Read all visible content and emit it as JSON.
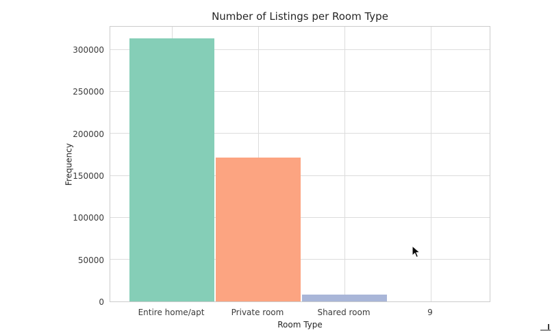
{
  "figure": {
    "background": "#ffffff",
    "text_color": "#262626",
    "grid_color": "#dcdcdc",
    "spine_color": "#cccccc"
  },
  "chart_data": {
    "type": "bar",
    "title": "Number of Listings per Room Type",
    "xlabel": "Room Type",
    "ylabel": "Frequency",
    "categories": [
      "Entire home/apt",
      "Private room",
      "Shared room",
      "9"
    ],
    "values": [
      313000,
      171000,
      8000,
      0
    ],
    "bar_colors": [
      "#85ceb7",
      "#fca481",
      "#a9b6d8",
      "transparent"
    ],
    "yticks": [
      0,
      50000,
      100000,
      150000,
      200000,
      250000,
      300000
    ],
    "ylim": [
      0,
      328500
    ],
    "grid": true,
    "legend": false
  }
}
